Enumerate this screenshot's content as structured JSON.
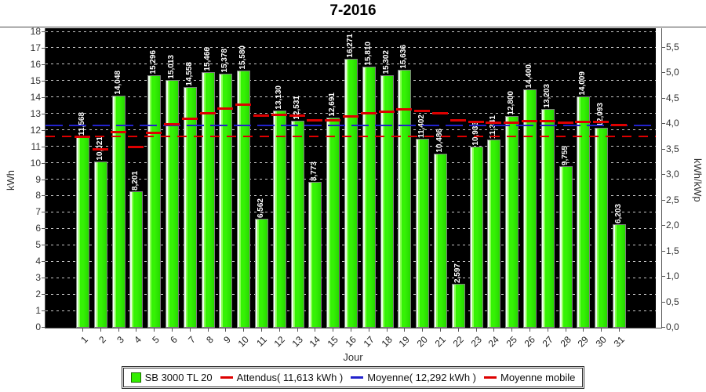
{
  "title": "7-2016",
  "axes": {
    "left_label": "kWh",
    "right_label": "kWh/kWp",
    "x_label": "Jour",
    "left_ticks": [
      "0",
      "1",
      "2",
      "3",
      "4",
      "5",
      "6",
      "7",
      "8",
      "9",
      "10",
      "11",
      "12",
      "13",
      "14",
      "15",
      "16",
      "17",
      "18"
    ],
    "right_ticks": [
      "0,0",
      "0,5",
      "1,0",
      "1,5",
      "2,0",
      "2,5",
      "3,0",
      "3,5",
      "4,0",
      "4,5",
      "5,0",
      "5,5"
    ],
    "x_ticks": [
      "1",
      "2",
      "3",
      "4",
      "5",
      "6",
      "7",
      "8",
      "9",
      "10",
      "11",
      "12",
      "13",
      "14",
      "15",
      "16",
      "17",
      "18",
      "19",
      "20",
      "21",
      "22",
      "23",
      "24",
      "25",
      "26",
      "27",
      "28",
      "29",
      "30",
      "31"
    ]
  },
  "legend": {
    "series_label": "SB 3000 TL 20",
    "attendus_label": "Attendus( 11,613 kWh )",
    "moyenne_label": "Moyenne( 12,292 kWh )",
    "mobile_label": "Moyenne mobile"
  },
  "colors": {
    "bar_green": "#33ee00",
    "attendus_red": "#dd0000",
    "moyenne_blue": "#2222cc",
    "mobile_red": "#dd0000",
    "plot_background": "#000000",
    "gridline": "#c8c8c8"
  },
  "chart_data": {
    "type": "bar",
    "title": "7-2016",
    "xlabel": "Jour",
    "ylabel_left": "kWh",
    "ylabel_right": "kWh/kWp",
    "ylim_left": [
      0,
      18
    ],
    "ylim_right": [
      0,
      5.8
    ],
    "kwp_ratio": 3.1,
    "grid": true,
    "legend_position": "bottom",
    "categories": [
      1,
      2,
      3,
      4,
      5,
      6,
      7,
      8,
      9,
      10,
      11,
      12,
      13,
      14,
      15,
      16,
      17,
      18,
      19,
      20,
      21,
      22,
      23,
      24,
      25,
      26,
      27,
      28,
      29,
      30,
      31
    ],
    "series": [
      {
        "name": "SB 3000 TL 20",
        "type": "bar",
        "values": [
          11.568,
          10.021,
          14.048,
          8.201,
          15.296,
          15.013,
          14.558,
          15.466,
          15.378,
          15.58,
          6.562,
          13.13,
          12.531,
          8.773,
          12.691,
          16.271,
          15.81,
          15.302,
          15.636,
          11.402,
          10.486,
          2.597,
          10.933,
          11.341,
          12.8,
          14.4,
          13.203,
          9.755,
          14.009,
          12.093,
          6.203
        ],
        "labels": [
          "11,568",
          "10,021",
          "14,048",
          "8,201",
          "15,296",
          "15,013",
          "14,558",
          "15,466",
          "15,378",
          "15,580",
          "6,562",
          "13,130",
          "12,531",
          "8,773",
          "12,691",
          "16,271",
          "15,810",
          "15,302",
          "15,636",
          "11,402",
          "10,486",
          "2,597",
          "10,933",
          "11,341",
          "12,800",
          "14,400",
          "13,203",
          "9,755",
          "14,009",
          "12,093",
          "6,203"
        ]
      },
      {
        "name": "Attendus",
        "type": "hline",
        "value": 11.613
      },
      {
        "name": "Moyenne",
        "type": "hline",
        "value": 12.292
      },
      {
        "name": "Moyenne mobile",
        "type": "step-segments",
        "values": [
          11.568,
          10.795,
          11.879,
          10.96,
          11.827,
          12.358,
          12.672,
          13.021,
          13.283,
          13.513,
          12.881,
          12.902,
          12.873,
          12.58,
          12.588,
          12.818,
          12.994,
          13.122,
          13.255,
          13.162,
          13.034,
          12.56,
          12.489,
          12.441,
          12.456,
          12.531,
          12.555,
          12.455,
          12.509,
          12.495,
          12.292
        ]
      }
    ]
  }
}
